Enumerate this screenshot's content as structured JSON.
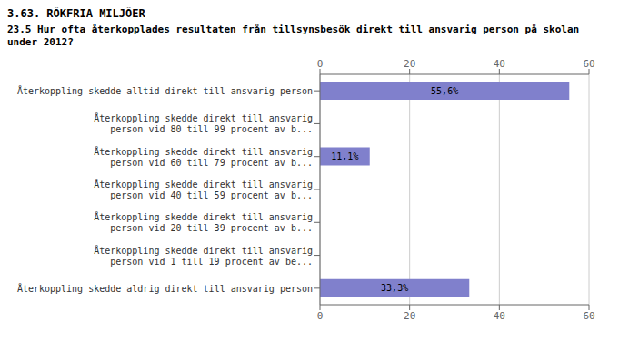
{
  "chart_data": {
    "type": "bar",
    "orientation": "horizontal",
    "title": "3.63. RÖKFRIA MILJÖER",
    "subtitle": "23.5 Hur ofta återkopplades resultaten från tillsynsbesök direkt till ansvarig person på skolan under 2012?",
    "categories": [
      "Återkoppling skedde alltid direkt till ansvarig person",
      "Återkoppling skedde direkt till ansvarig\nperson vid 80 till 99 procent av b...",
      "Återkoppling skedde direkt till ansvarig\nperson vid 60 till 79 procent av b...",
      "Återkoppling skedde direkt till ansvarig\nperson vid 40 till 59 procent av b...",
      "Återkoppling skedde direkt till ansvarig\nperson vid 20 till 39 procent av b...",
      "Återkoppling skedde direkt till ansvarig\nperson vid 1 till 19 procent av be...",
      "Återkoppling skedde aldrig direkt till ansvarig person"
    ],
    "values": [
      55.6,
      0,
      11.1,
      0,
      0,
      0,
      33.3
    ],
    "value_labels": [
      "55,6%",
      null,
      "11,1%",
      null,
      null,
      null,
      "33,3%"
    ],
    "data_labels": true,
    "color": "#8080cc",
    "xlim": [
      0,
      60
    ],
    "xticks": [
      0,
      20,
      40,
      60
    ],
    "grid": true
  }
}
